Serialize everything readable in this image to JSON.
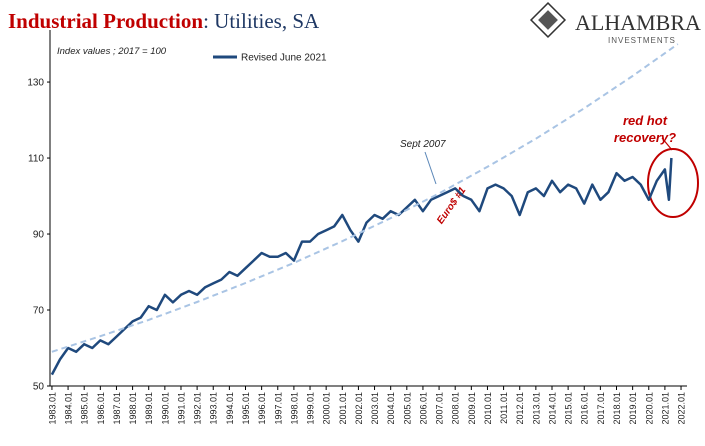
{
  "chart_data": {
    "type": "line",
    "title_highlight": "Industrial Production",
    "title": ": Utilities, SA",
    "subtitle": "Index values ; 2017 = 100",
    "logo": {
      "name": "ALHAMBRA",
      "tagline": "INVESTMENTS"
    },
    "annotations": {
      "sept": "Sept 2007",
      "euro": "Euro$ #1",
      "recovery": [
        "red hot",
        "recovery?"
      ]
    },
    "xlim": [
      1982.88,
      2022.37
    ],
    "xticks": [
      {
        "value": 1983,
        "label": "1983.01"
      },
      {
        "value": 1984,
        "label": "1984.01"
      },
      {
        "value": 1985,
        "label": "1985.01"
      },
      {
        "value": 1986,
        "label": "1986.01"
      },
      {
        "value": 1987,
        "label": "1987.01"
      },
      {
        "value": 1988,
        "label": "1988.01"
      },
      {
        "value": 1989,
        "label": "1989.01"
      },
      {
        "value": 1990,
        "label": "1990.01"
      },
      {
        "value": 1991,
        "label": "1991.01"
      },
      {
        "value": 1992,
        "label": "1992.01"
      },
      {
        "value": 1993,
        "label": "1993.01"
      },
      {
        "value": 1994,
        "label": "1994.01"
      },
      {
        "value": 1995,
        "label": "1995.01"
      },
      {
        "value": 1996,
        "label": "1996.01"
      },
      {
        "value": 1997,
        "label": "1997.01"
      },
      {
        "value": 1998,
        "label": "1998.01"
      },
      {
        "value": 1999,
        "label": "1999.01"
      },
      {
        "value": 2000,
        "label": "2000.01"
      },
      {
        "value": 2001,
        "label": "2001.01"
      },
      {
        "value": 2002,
        "label": "2002.01"
      },
      {
        "value": 2003,
        "label": "2003.01"
      },
      {
        "value": 2004,
        "label": "2004.01"
      },
      {
        "value": 2005,
        "label": "2005.01"
      },
      {
        "value": 2006,
        "label": "2006.01"
      },
      {
        "value": 2007,
        "label": "2007.01"
      },
      {
        "value": 2008,
        "label": "2008.01"
      },
      {
        "value": 2009,
        "label": "2009.01"
      },
      {
        "value": 2010,
        "label": "2010.01"
      },
      {
        "value": 2011,
        "label": "2011.01"
      },
      {
        "value": 2012,
        "label": "2012.01"
      },
      {
        "value": 2013,
        "label": "2013.01"
      },
      {
        "value": 2014,
        "label": "2014.01"
      },
      {
        "value": 2015,
        "label": "2015.01"
      },
      {
        "value": 2016,
        "label": "2016.01"
      },
      {
        "value": 2017,
        "label": "2017.01"
      },
      {
        "value": 2018,
        "label": "2018.01"
      },
      {
        "value": 2019,
        "label": "2019.01"
      },
      {
        "value": 2020,
        "label": "2020.01"
      },
      {
        "value": 2021,
        "label": "2021.01"
      },
      {
        "value": 2022,
        "label": "2022.01"
      }
    ],
    "ylim": [
      50,
      143.7
    ],
    "yticks": [
      50,
      70,
      90,
      110,
      130
    ],
    "series": [
      {
        "name": "Revised June 2021",
        "color": "#1f497d",
        "x": [
          1983,
          1983.5,
          1984,
          1984.5,
          1985,
          1985.5,
          1986,
          1986.5,
          1987,
          1987.5,
          1988,
          1988.5,
          1989,
          1989.5,
          1990,
          1990.5,
          1991,
          1991.5,
          1992,
          1992.5,
          1993,
          1993.5,
          1994,
          1994.5,
          1995,
          1995.5,
          1996,
          1996.5,
          1997,
          1997.5,
          1998,
          1998.5,
          1999,
          1999.5,
          2000,
          2000.5,
          2001,
          2001.5,
          2002,
          2002.5,
          2003,
          2003.5,
          2004,
          2004.5,
          2005,
          2005.5,
          2006,
          2006.5,
          2007,
          2007.5,
          2008,
          2008.5,
          2009,
          2009.5,
          2010,
          2010.5,
          2011,
          2011.5,
          2012,
          2012.5,
          2013,
          2013.5,
          2014,
          2014.5,
          2015,
          2015.5,
          2016,
          2016.5,
          2017,
          2017.5,
          2018,
          2018.5,
          2019,
          2019.5,
          2020,
          2020.5,
          2021,
          2021.25,
          2021.4
        ],
        "values": [
          53,
          57,
          60,
          59,
          61,
          60,
          62,
          61,
          63,
          65,
          67,
          68,
          71,
          70,
          74,
          72,
          74,
          75,
          74,
          76,
          77,
          78,
          80,
          79,
          81,
          83,
          85,
          84,
          84,
          85,
          83,
          88,
          88,
          90,
          91,
          92,
          95,
          91,
          88,
          93,
          95,
          94,
          96,
          95,
          97,
          99,
          96,
          99,
          100,
          101,
          102,
          100,
          99,
          96,
          102,
          103,
          102,
          100,
          95,
          101,
          102,
          100,
          104,
          101,
          103,
          102,
          98,
          103,
          99,
          101,
          106,
          104,
          105,
          103,
          99,
          104,
          107,
          99,
          110
        ]
      },
      {
        "color": "#a9c4e4",
        "dashed": true,
        "x": [
          1983,
          1986,
          1989,
          1992,
          1995,
          1998,
          2001,
          2004,
          2007,
          2010,
          2013,
          2016,
          2019,
          2021.8
        ],
        "values": [
          59,
          63.1,
          67.4,
          72.1,
          77.1,
          82.4,
          88.1,
          94.2,
          100.7,
          107.7,
          115.1,
          123.1,
          131.6,
          140
        ]
      }
    ]
  }
}
